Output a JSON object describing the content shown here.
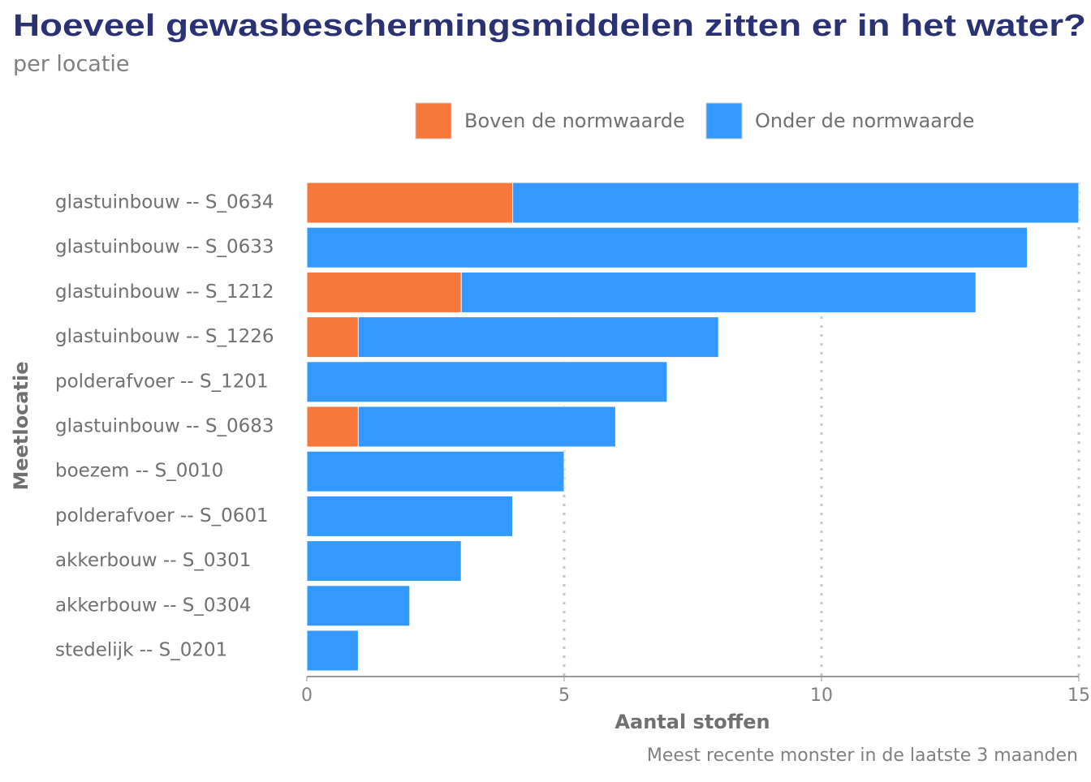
{
  "chart_data": {
    "type": "stacked-bar-horizontal",
    "title": "Hoeveel gewasbeschermingsmiddelen zitten er in het water?",
    "subtitle": "per locatie",
    "x_label": "Aantal stoffen",
    "y_label": "Meetlocatie",
    "caption": "Meest recente monster in de laatste 3 maanden",
    "categories": [
      "glastuinbouw -- S_0634",
      "glastuinbouw -- S_0633",
      "glastuinbouw -- S_1212",
      "glastuinbouw -- S_1226",
      "polderafvoer -- S_1201",
      "glastuinbouw -- S_0683",
      "boezem -- S_0010",
      "polderafvoer -- S_0601",
      "akkerbouw -- S_0301",
      "akkerbouw -- S_0304",
      "stedelijk -- S_0201"
    ],
    "series": [
      {
        "name": "Boven de normwaarde",
        "color": "#f8773a",
        "values": [
          4,
          0,
          3,
          1,
          0,
          1,
          0,
          0,
          0,
          0,
          0
        ]
      },
      {
        "name": "Onder de normwaarde",
        "color": "#3399ff",
        "values": [
          11,
          14,
          10,
          7,
          7,
          5,
          5,
          4,
          3,
          2,
          1
        ]
      }
    ],
    "xlim": [
      0,
      15
    ],
    "xticks": [
      0,
      5,
      10,
      15
    ],
    "grid": true
  }
}
